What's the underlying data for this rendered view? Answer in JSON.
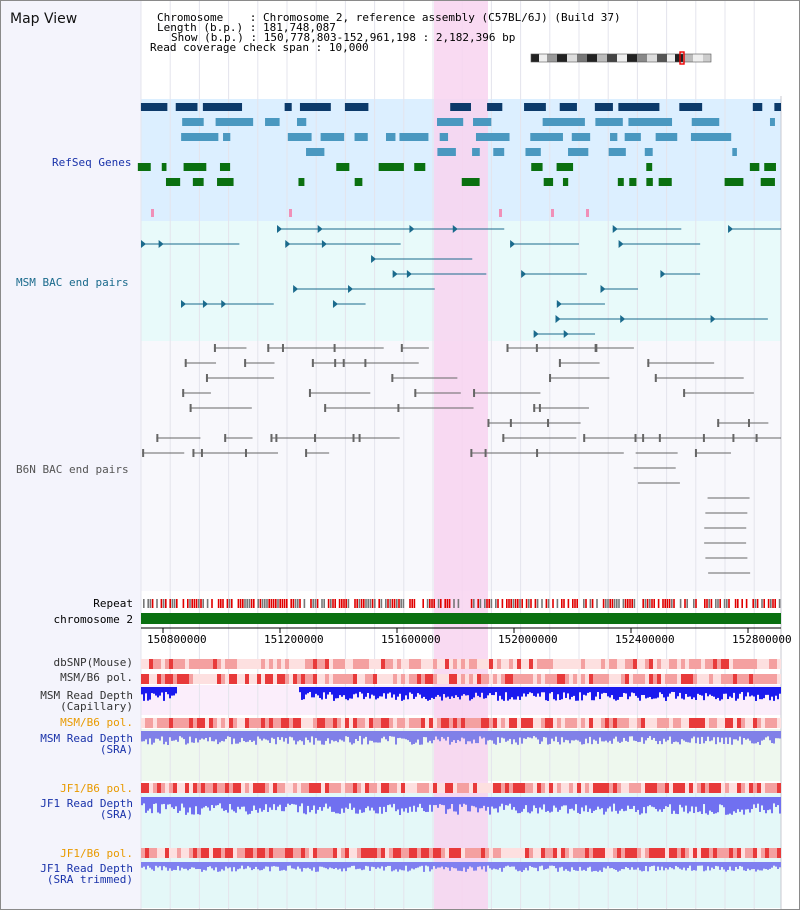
{
  "title": "Map View",
  "info": {
    "chromosome_label": "Chromosome",
    "chromosome_value": "Chromosome 2, reference assembly (C57BL/6J) (Build 37)",
    "length_label": "Length (b.p.)",
    "length_value": "181,748,087",
    "show_label": "Show (b.p.)",
    "show_value": "150,778,803-152,961,198 : 2,182,396 bp",
    "coverage_label": "Read coverage check span",
    "coverage_value": "10,000"
  },
  "tracks": {
    "refseq": "RefSeq Genes",
    "msm_bac": "MSM BAC end pairs",
    "b6n_bac": "B6N BAC end pairs",
    "repeat": "Repeat",
    "chromosome": "chromosome 2",
    "dbsnp": "dbSNP(Mouse)",
    "msm_pol1": "MSM/B6 pol.",
    "msm_cap_1": "MSM Read Depth",
    "msm_cap_2": "(Capillary)",
    "msm_pol2": "MSM/B6 pol.",
    "msm_sra_1": "MSM Read Depth",
    "msm_sra_2": "(SRA)",
    "jf1_pol1": "JF1/B6 pol.",
    "jf1_sra_1": "JF1 Read Depth",
    "jf1_sra_2": "(SRA)",
    "jf1_pol2": "JF1/B6 pol.",
    "jf1_trim_1": "JF1 Read Depth",
    "jf1_trim_2": "(SRA trimmed)"
  },
  "axis": {
    "ticks": [
      "150800000",
      "151200000",
      "151600000",
      "152000000",
      "152400000",
      "152800000"
    ]
  },
  "colors": {
    "refseq_bg": "#dcefff",
    "msm_bg": "#e8fafa",
    "highlight": "#f8d4f0",
    "gene_navy": "#0c3a6a",
    "gene_teal": "#4a98c0",
    "gene_green": "#0a7010",
    "msm_line": "#1a6a8c",
    "b6n_line": "#666666",
    "repeat_red": "#e00000",
    "chrom_green": "#0a7010",
    "snp_pink": "#f8c0c0",
    "depth_blue": "#1a1aee",
    "label_blue": "#1a33aa",
    "label_orange": "#e89a00"
  }
}
